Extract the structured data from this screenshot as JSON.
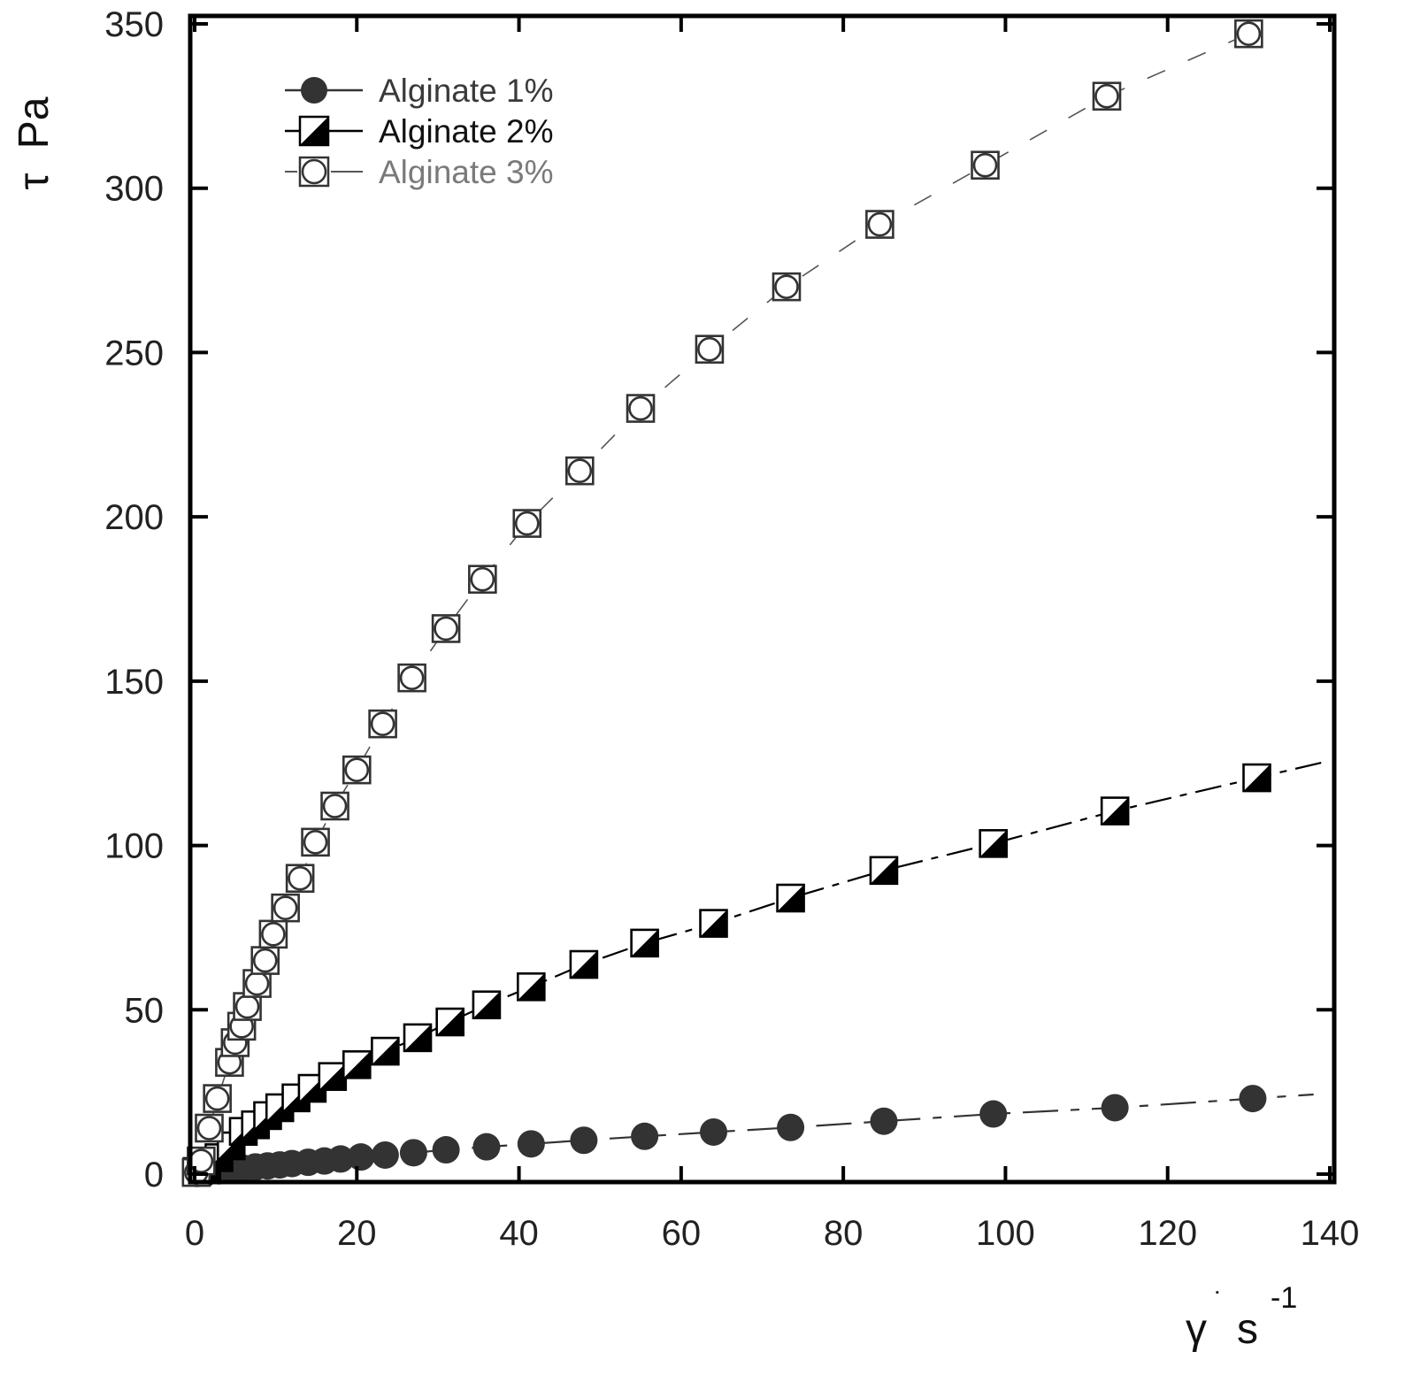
{
  "chart_data": {
    "type": "scatter",
    "title": "",
    "xlabel": "γ˙ s⁻¹",
    "ylabel": "τ Pa",
    "x_axis_label": {
      "symbol": "γ",
      "dot": "˙",
      "unit": "s",
      "exponent": "-1"
    },
    "y_axis_label": {
      "symbol": "τ",
      "unit": "Pa"
    },
    "xlim": [
      0,
      140
    ],
    "ylim": [
      0,
      350
    ],
    "xticks": [
      0,
      20,
      40,
      60,
      80,
      100,
      120,
      140
    ],
    "yticks": [
      0,
      50,
      100,
      150,
      200,
      250,
      300,
      350
    ],
    "xtick_labels": [
      "0",
      "20",
      "40",
      "60",
      "80",
      "100",
      "120",
      "140"
    ],
    "ytick_labels": [
      "0",
      "50",
      "100",
      "150",
      "200",
      "250",
      "300",
      "350"
    ],
    "grid": false,
    "legend_position": "top-left",
    "series": [
      {
        "name": "Alginate 1%",
        "marker": "circle-filled",
        "line": "solid-dashed",
        "color": "#333333",
        "x": [
          0.3,
          1.5,
          3,
          4.5,
          6,
          7.5,
          9,
          10.5,
          12,
          14,
          16,
          18,
          20.5,
          23.5,
          27,
          31,
          36,
          41.5,
          48,
          55.5,
          64,
          73.5,
          85,
          98.5,
          113.5,
          130.5
        ],
        "y": [
          0.2,
          0.6,
          1.0,
          1.4,
          1.8,
          2.2,
          2.5,
          2.8,
          3.2,
          3.6,
          4.0,
          4.6,
          5.2,
          5.8,
          6.5,
          7.4,
          8.3,
          9.2,
          10.3,
          11.5,
          12.8,
          14.2,
          16.1,
          18.3,
          20.2,
          23.0
        ],
        "values": [
          0.2,
          0.6,
          1.0,
          1.4,
          1.8,
          2.2,
          2.5,
          2.8,
          3.2,
          3.6,
          4.0,
          4.6,
          5.2,
          5.8,
          6.5,
          7.4,
          8.3,
          9.2,
          10.3,
          11.5,
          12.8,
          14.2,
          16.1,
          18.3,
          20.2,
          23.0
        ]
      },
      {
        "name": "Alginate 2%",
        "marker": "square-half-filled",
        "line": "solid-dashed",
        "color": "#000000",
        "x": [
          0.3,
          1.5,
          3,
          4.5,
          6,
          7.5,
          9,
          10.5,
          12.5,
          14.5,
          17,
          20,
          23.5,
          27.5,
          31.5,
          36,
          41.5,
          48,
          55.5,
          64,
          73.5,
          85,
          98.5,
          113.5,
          131
        ],
        "y": [
          0.8,
          2.6,
          5.0,
          8.6,
          13.0,
          15.0,
          17.8,
          20.2,
          23.2,
          26.1,
          29.7,
          33.3,
          37.4,
          41.5,
          46.3,
          51.5,
          57.0,
          63.8,
          70.3,
          76.3,
          84.0,
          92.4,
          100.6,
          110.5,
          120.6
        ],
        "values": [
          0.8,
          2.6,
          5.0,
          8.6,
          13.0,
          15.0,
          17.8,
          20.2,
          23.2,
          26.1,
          29.7,
          33.3,
          37.4,
          41.5,
          46.3,
          51.5,
          57.0,
          63.8,
          70.3,
          76.3,
          84.0,
          92.4,
          100.6,
          110.5,
          120.6
        ]
      },
      {
        "name": "Alginate 3%",
        "marker": "circle-in-square-open",
        "line": "dashed",
        "color": "#555555",
        "x": [
          0.2,
          0.8,
          1.8,
          2.8,
          4.3,
          5.0,
          5.8,
          6.5,
          7.7,
          8.7,
          9.7,
          11.2,
          13.0,
          14.9,
          17.3,
          20.0,
          23.2,
          26.8,
          31.0,
          35.5,
          41.0,
          47.5,
          55.0,
          63.5,
          73.0,
          84.5,
          97.5,
          112.5,
          130.0
        ],
        "y": [
          0.5,
          4.0,
          14.0,
          23.0,
          34.0,
          40.0,
          45.0,
          51.0,
          58.0,
          65.0,
          73.0,
          81.0,
          90.0,
          101.0,
          112.0,
          123.0,
          137.0,
          151.0,
          166.0,
          181.0,
          198.0,
          214.0,
          233.0,
          251.0,
          270.0,
          289.0,
          307.0,
          328.0,
          347.0
        ],
        "values": [
          0.5,
          4.0,
          14.0,
          23.0,
          34.0,
          40.0,
          45.0,
          51.0,
          58.0,
          65.0,
          73.0,
          81.0,
          90.0,
          101.0,
          112.0,
          123.0,
          137.0,
          151.0,
          166.0,
          181.0,
          198.0,
          214.0,
          233.0,
          251.0,
          270.0,
          289.0,
          307.0,
          328.0,
          347.0
        ]
      }
    ]
  },
  "legend": {
    "items": [
      {
        "label": "Alginate 1%",
        "color": "#3a3a3a"
      },
      {
        "label": "Alginate 2%",
        "color": "#111111"
      },
      {
        "label": "Alginate 3%",
        "color": "#7a7a7a"
      }
    ]
  }
}
